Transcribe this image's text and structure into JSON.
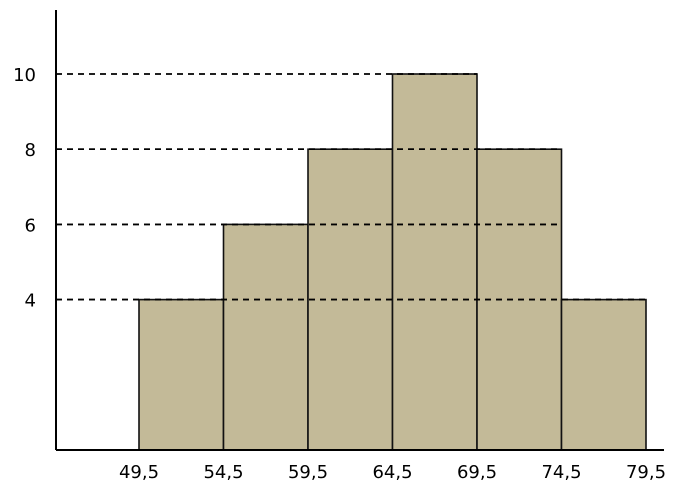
{
  "chart_data": {
    "type": "bar",
    "subtype": "histogram",
    "bin_edges": [
      49.5,
      54.5,
      59.5,
      64.5,
      69.5,
      74.5,
      79.5
    ],
    "values": [
      4,
      6,
      8,
      10,
      8,
      4
    ],
    "x_tick_labels": [
      "49,5",
      "54,5",
      "59,5",
      "64,5",
      "69,5",
      "74,5",
      "79,5"
    ],
    "y_tick_values": [
      4,
      6,
      8,
      10
    ],
    "y_tick_labels": [
      "4",
      "6",
      "8",
      "10"
    ],
    "ylim": [
      0,
      12.5
    ],
    "xlim": [
      44.5,
      81.5
    ],
    "title": "",
    "xlabel": "",
    "ylabel": "",
    "grid": "dashed horizontal reference lines at y ticks",
    "legend": "none",
    "colors": {
      "bar_fill": "#c3ba98",
      "bar_stroke": "#111111",
      "axis": "#000000",
      "reference_line": "#000000"
    }
  }
}
